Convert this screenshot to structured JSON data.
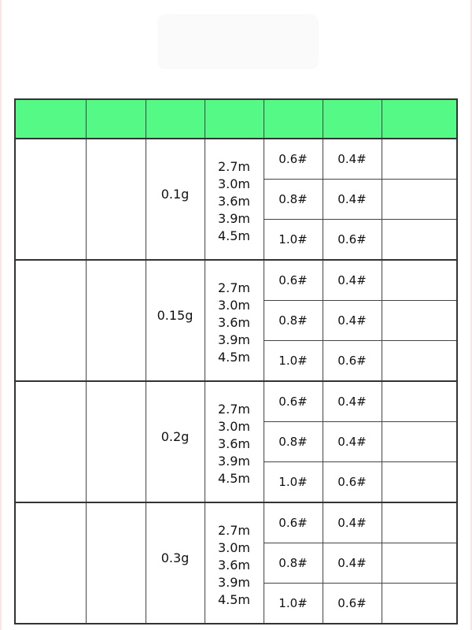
{
  "colors": {
    "header_bg": "#55f985",
    "border": "#333333"
  },
  "table": {
    "header": [
      "",
      "",
      "",
      "",
      "",
      "",
      ""
    ],
    "groups": [
      {
        "weight": "0.1g",
        "lengths": [
          "2.7m",
          "3.0m",
          "3.6m",
          "3.9m",
          "4.5m"
        ],
        "lines": [
          [
            "0.6#",
            "0.4#"
          ],
          [
            "0.8#",
            "0.4#"
          ],
          [
            "1.0#",
            "0.6#"
          ]
        ]
      },
      {
        "weight": "0.15g",
        "lengths": [
          "2.7m",
          "3.0m",
          "3.6m",
          "3.9m",
          "4.5m"
        ],
        "lines": [
          [
            "0.6#",
            "0.4#"
          ],
          [
            "0.8#",
            "0.4#"
          ],
          [
            "1.0#",
            "0.6#"
          ]
        ]
      },
      {
        "weight": "0.2g",
        "lengths": [
          "2.7m",
          "3.0m",
          "3.6m",
          "3.9m",
          "4.5m"
        ],
        "lines": [
          [
            "0.6#",
            "0.4#"
          ],
          [
            "0.8#",
            "0.4#"
          ],
          [
            "1.0#",
            "0.6#"
          ]
        ]
      },
      {
        "weight": "0.3g",
        "lengths": [
          "2.7m",
          "3.0m",
          "3.6m",
          "3.9m",
          "4.5m"
        ],
        "lines": [
          [
            "0.6#",
            "0.4#"
          ],
          [
            "0.8#",
            "0.4#"
          ],
          [
            "1.0#",
            "0.6#"
          ]
        ]
      }
    ]
  }
}
